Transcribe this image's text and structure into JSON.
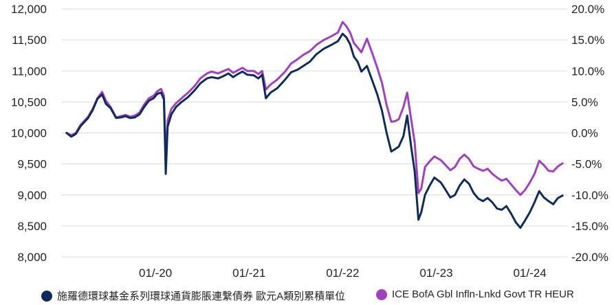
{
  "chart_data": {
    "type": "line",
    "y_left": {
      "ylim": [
        8000,
        12000
      ],
      "ticks": [
        "12,000",
        "11,500",
        "11,000",
        "10,500",
        "10,000",
        "9,500",
        "9,000",
        "8,500",
        "8,000"
      ]
    },
    "y_right": {
      "ylim": [
        -20,
        20
      ],
      "ticks": [
        "20.0%",
        "15.0%",
        "10.0%",
        "5.0%",
        "0.0%",
        "-5.0%",
        "-10.0%",
        "-15.0%",
        "-20.0%"
      ]
    },
    "x_ticks": [
      "01/-20",
      "01/-21",
      "01/-22",
      "01/-23",
      "01/-24"
    ],
    "x_tick_positions": [
      2020.0,
      2021.0,
      2022.0,
      2023.0,
      2024.0
    ],
    "xlim": [
      2019.0,
      2024.4
    ],
    "grid": true,
    "legend_position": "bottom",
    "series": [
      {
        "name": "施羅德環球基金系列環球通貨膨脹連繫債券 歐元A類別累積單位",
        "color": "#0d2b5c",
        "points": [
          [
            2019.05,
            10000
          ],
          [
            2019.1,
            9940
          ],
          [
            2019.15,
            9985
          ],
          [
            2019.2,
            10110
          ],
          [
            2019.28,
            10240
          ],
          [
            2019.33,
            10370
          ],
          [
            2019.38,
            10550
          ],
          [
            2019.43,
            10620
          ],
          [
            2019.47,
            10470
          ],
          [
            2019.52,
            10400
          ],
          [
            2019.58,
            10240
          ],
          [
            2019.63,
            10250
          ],
          [
            2019.68,
            10270
          ],
          [
            2019.73,
            10240
          ],
          [
            2019.78,
            10250
          ],
          [
            2019.83,
            10300
          ],
          [
            2019.88,
            10420
          ],
          [
            2019.93,
            10520
          ],
          [
            2019.98,
            10560
          ],
          [
            2020.02,
            10630
          ],
          [
            2020.06,
            10650
          ],
          [
            2020.09,
            10540
          ],
          [
            2020.11,
            9340
          ],
          [
            2020.13,
            10100
          ],
          [
            2020.17,
            10300
          ],
          [
            2020.22,
            10420
          ],
          [
            2020.28,
            10500
          ],
          [
            2020.35,
            10580
          ],
          [
            2020.42,
            10690
          ],
          [
            2020.48,
            10800
          ],
          [
            2020.55,
            10880
          ],
          [
            2020.6,
            10900
          ],
          [
            2020.67,
            10880
          ],
          [
            2020.73,
            10920
          ],
          [
            2020.78,
            10960
          ],
          [
            2020.83,
            10900
          ],
          [
            2020.88,
            10950
          ],
          [
            2020.93,
            10990
          ],
          [
            2020.98,
            10940
          ],
          [
            2021.05,
            10930
          ],
          [
            2021.1,
            10880
          ],
          [
            2021.14,
            10940
          ],
          [
            2021.18,
            10560
          ],
          [
            2021.23,
            10650
          ],
          [
            2021.3,
            10720
          ],
          [
            2021.38,
            10850
          ],
          [
            2021.45,
            10980
          ],
          [
            2021.52,
            11020
          ],
          [
            2021.58,
            11080
          ],
          [
            2021.65,
            11150
          ],
          [
            2021.72,
            11270
          ],
          [
            2021.8,
            11360
          ],
          [
            2021.88,
            11420
          ],
          [
            2021.95,
            11480
          ],
          [
            2022.0,
            11600
          ],
          [
            2022.04,
            11540
          ],
          [
            2022.08,
            11430
          ],
          [
            2022.12,
            11230
          ],
          [
            2022.16,
            11150
          ],
          [
            2022.2,
            10990
          ],
          [
            2022.26,
            11080
          ],
          [
            2022.32,
            10830
          ],
          [
            2022.37,
            10620
          ],
          [
            2022.42,
            10360
          ],
          [
            2022.47,
            10000
          ],
          [
            2022.52,
            9700
          ],
          [
            2022.56,
            9740
          ],
          [
            2022.6,
            9780
          ],
          [
            2022.65,
            9950
          ],
          [
            2022.69,
            10280
          ],
          [
            2022.73,
            9800
          ],
          [
            2022.77,
            9380
          ],
          [
            2022.81,
            8600
          ],
          [
            2022.84,
            8720
          ],
          [
            2022.88,
            9000
          ],
          [
            2022.93,
            9150
          ],
          [
            2022.98,
            9280
          ],
          [
            2023.05,
            9200
          ],
          [
            2023.1,
            9080
          ],
          [
            2023.15,
            8960
          ],
          [
            2023.2,
            9000
          ],
          [
            2023.25,
            9150
          ],
          [
            2023.3,
            9250
          ],
          [
            2023.35,
            9180
          ],
          [
            2023.4,
            9030
          ],
          [
            2023.45,
            8940
          ],
          [
            2023.5,
            8900
          ],
          [
            2023.55,
            8950
          ],
          [
            2023.6,
            8880
          ],
          [
            2023.65,
            8780
          ],
          [
            2023.7,
            8760
          ],
          [
            2023.75,
            8820
          ],
          [
            2023.8,
            8700
          ],
          [
            2023.85,
            8560
          ],
          [
            2023.9,
            8470
          ],
          [
            2023.95,
            8590
          ],
          [
            2024.0,
            8720
          ],
          [
            2024.05,
            8880
          ],
          [
            2024.1,
            9060
          ],
          [
            2024.15,
            8960
          ],
          [
            2024.2,
            8900
          ],
          [
            2024.25,
            8850
          ],
          [
            2024.3,
            8950
          ],
          [
            2024.35,
            8990
          ]
        ]
      },
      {
        "name": "ICE BofA Gbl Infln-Lnkd Govt TR HEUR",
        "color": "#a040c0",
        "points": [
          [
            2019.05,
            10000
          ],
          [
            2019.1,
            9960
          ],
          [
            2019.15,
            10000
          ],
          [
            2019.2,
            10130
          ],
          [
            2019.28,
            10260
          ],
          [
            2019.33,
            10390
          ],
          [
            2019.38,
            10560
          ],
          [
            2019.43,
            10660
          ],
          [
            2019.47,
            10520
          ],
          [
            2019.52,
            10420
          ],
          [
            2019.58,
            10250
          ],
          [
            2019.63,
            10270
          ],
          [
            2019.68,
            10290
          ],
          [
            2019.73,
            10260
          ],
          [
            2019.78,
            10280
          ],
          [
            2019.83,
            10330
          ],
          [
            2019.88,
            10460
          ],
          [
            2019.93,
            10560
          ],
          [
            2019.98,
            10600
          ],
          [
            2020.02,
            10670
          ],
          [
            2020.06,
            10710
          ],
          [
            2020.09,
            10600
          ],
          [
            2020.11,
            9560
          ],
          [
            2020.13,
            10200
          ],
          [
            2020.17,
            10390
          ],
          [
            2020.22,
            10480
          ],
          [
            2020.28,
            10560
          ],
          [
            2020.35,
            10650
          ],
          [
            2020.42,
            10760
          ],
          [
            2020.48,
            10880
          ],
          [
            2020.55,
            10960
          ],
          [
            2020.6,
            10990
          ],
          [
            2020.67,
            10960
          ],
          [
            2020.73,
            11000
          ],
          [
            2020.78,
            11030
          ],
          [
            2020.83,
            10970
          ],
          [
            2020.88,
            11010
          ],
          [
            2020.93,
            11050
          ],
          [
            2020.98,
            11000
          ],
          [
            2021.05,
            11000
          ],
          [
            2021.1,
            10950
          ],
          [
            2021.14,
            11000
          ],
          [
            2021.18,
            10700
          ],
          [
            2021.23,
            10780
          ],
          [
            2021.3,
            10860
          ],
          [
            2021.38,
            10980
          ],
          [
            2021.45,
            11120
          ],
          [
            2021.52,
            11190
          ],
          [
            2021.58,
            11260
          ],
          [
            2021.65,
            11320
          ],
          [
            2021.72,
            11420
          ],
          [
            2021.8,
            11500
          ],
          [
            2021.88,
            11560
          ],
          [
            2021.95,
            11620
          ],
          [
            2022.0,
            11790
          ],
          [
            2022.04,
            11720
          ],
          [
            2022.08,
            11620
          ],
          [
            2022.12,
            11450
          ],
          [
            2022.16,
            11380
          ],
          [
            2022.2,
            11300
          ],
          [
            2022.26,
            11520
          ],
          [
            2022.32,
            11270
          ],
          [
            2022.37,
            11050
          ],
          [
            2022.42,
            10810
          ],
          [
            2022.47,
            10450
          ],
          [
            2022.52,
            10180
          ],
          [
            2022.56,
            10190
          ],
          [
            2022.6,
            10220
          ],
          [
            2022.65,
            10420
          ],
          [
            2022.69,
            10650
          ],
          [
            2022.73,
            10240
          ],
          [
            2022.77,
            9850
          ],
          [
            2022.81,
            9030
          ],
          [
            2022.84,
            9100
          ],
          [
            2022.88,
            9450
          ],
          [
            2022.93,
            9540
          ],
          [
            2022.98,
            9620
          ],
          [
            2023.05,
            9560
          ],
          [
            2023.1,
            9480
          ],
          [
            2023.15,
            9400
          ],
          [
            2023.2,
            9450
          ],
          [
            2023.25,
            9580
          ],
          [
            2023.3,
            9650
          ],
          [
            2023.35,
            9580
          ],
          [
            2023.4,
            9460
          ],
          [
            2023.45,
            9420
          ],
          [
            2023.5,
            9390
          ],
          [
            2023.55,
            9420
          ],
          [
            2023.6,
            9340
          ],
          [
            2023.65,
            9280
          ],
          [
            2023.7,
            9230
          ],
          [
            2023.75,
            9260
          ],
          [
            2023.8,
            9170
          ],
          [
            2023.85,
            9080
          ],
          [
            2023.9,
            9000
          ],
          [
            2023.95,
            9080
          ],
          [
            2024.0,
            9200
          ],
          [
            2024.05,
            9340
          ],
          [
            2024.1,
            9550
          ],
          [
            2024.15,
            9480
          ],
          [
            2024.2,
            9390
          ],
          [
            2024.25,
            9380
          ],
          [
            2024.3,
            9460
          ],
          [
            2024.35,
            9510
          ]
        ]
      }
    ]
  }
}
